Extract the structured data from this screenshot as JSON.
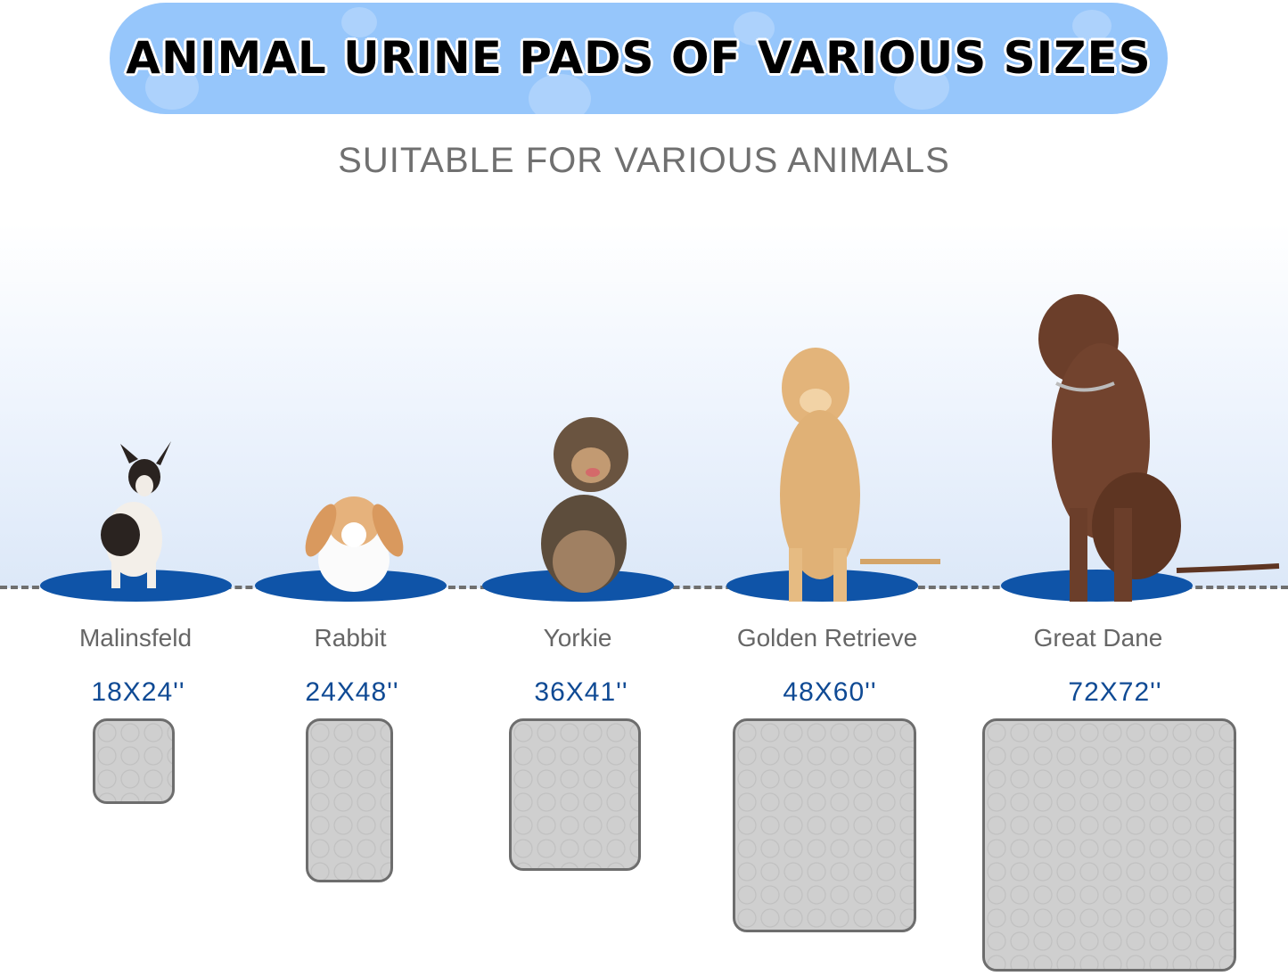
{
  "header": {
    "title": "ANIMAL URINE PADS OF VARIOUS SIZES",
    "subtitle": "SUITABLE FOR VARIOUS ANIMALS",
    "banner_color": "#96c6fb"
  },
  "items": [
    {
      "name": "Malinsfeld",
      "size": "18X24''"
    },
    {
      "name": "Rabbit",
      "size": "24X48''"
    },
    {
      "name": "Yorkie",
      "size": "36X41''"
    },
    {
      "name": "Golden Retrieve",
      "size": "48X60''"
    },
    {
      "name": "Great Dane",
      "size": "72X72''"
    }
  ],
  "colors": {
    "disc": "#0f54a8",
    "size_text": "#0f4a94",
    "pad": "#cfcfcf"
  }
}
